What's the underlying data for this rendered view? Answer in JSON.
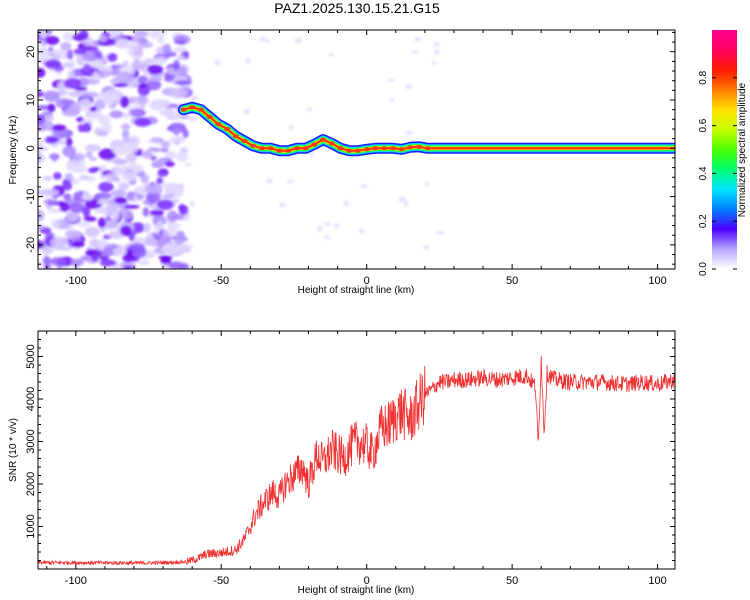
{
  "title": "PAZ1.2025.130.15.21.G15",
  "chart_data": [
    {
      "type": "heatmap",
      "xlabel": "Height of straight line (km)",
      "ylabel": "Frequency (Hz)",
      "xlim": [
        -113,
        106
      ],
      "ylim": [
        -25,
        24.5
      ],
      "xticks": [
        -100,
        -50,
        0,
        50,
        100
      ],
      "xtick_labels": [
        "-100",
        "-50",
        "0",
        "50",
        "100"
      ],
      "yticks": [
        -20,
        -10,
        0,
        10,
        20
      ],
      "ytick_labels": [
        "-20",
        "-10",
        "0",
        "10",
        "20"
      ],
      "noise_region_x": [
        -113,
        -62
      ],
      "ridge": {
        "x": [
          -63,
          -60,
          -57,
          -54,
          -51,
          -48,
          -45,
          -42,
          -39,
          -36,
          -33,
          -30,
          -27,
          -24,
          -21,
          -18,
          -15,
          -12,
          -9,
          -6,
          -3,
          0,
          3,
          6,
          9,
          12,
          15,
          18,
          21,
          30,
          50,
          60,
          80,
          106
        ],
        "freq": [
          8,
          8.5,
          8,
          6.5,
          5,
          4,
          2.5,
          1.5,
          0.5,
          0,
          0,
          -0.5,
          -0.5,
          0,
          0,
          0.8,
          1.8,
          1,
          0,
          -0.5,
          -0.5,
          -0.2,
          0,
          0,
          0,
          -0.2,
          0.2,
          0.3,
          0,
          0,
          0,
          0,
          0,
          0
        ]
      },
      "colorbar": {
        "label": "Normalized spectral amplitude",
        "range": [
          0,
          1
        ],
        "ticks": [
          0.0,
          0.2,
          0.4,
          0.6,
          0.8
        ],
        "tick_labels": [
          "0.0",
          "0.2",
          "0.4",
          "0.6",
          "0.8"
        ],
        "colors": [
          "#ffffff",
          "#b8a6ff",
          "#4b00ff",
          "#0080ff",
          "#00e5ff",
          "#00ff70",
          "#4cff00",
          "#c8ff00",
          "#ffe000",
          "#ff7a00",
          "#ff1a00",
          "#ff0060",
          "#ff0090"
        ]
      }
    },
    {
      "type": "line",
      "xlabel": "Height of straight line (km)",
      "ylabel": "SNR (10 * v/v)",
      "xlim": [
        -113,
        106
      ],
      "ylim": [
        0,
        5600
      ],
      "xticks": [
        -100,
        -50,
        0,
        50,
        100
      ],
      "xtick_labels": [
        "-100",
        "-50",
        "0",
        "50",
        "100"
      ],
      "yticks": [
        1000,
        2000,
        3000,
        4000,
        5000
      ],
      "ytick_labels": [
        "1000",
        "2000",
        "3000",
        "4000",
        "5000"
      ],
      "color": "#f03030",
      "series": [
        {
          "x": [
            -113,
            -100,
            -80,
            -70,
            -62,
            -58,
            -55,
            -50,
            -45,
            -42,
            -40,
            -38,
            -35,
            -32,
            -30,
            -28,
            -25,
            -22,
            -20,
            -17,
            -15,
            -12,
            -10,
            -8,
            -5,
            -3,
            0,
            2,
            5,
            8,
            10,
            12,
            15,
            18,
            20,
            22,
            25,
            28,
            30,
            35,
            40,
            45,
            50,
            55,
            58,
            59,
            60,
            61,
            62,
            65,
            70,
            80,
            90,
            95,
            100,
            106
          ],
          "y": [
            150,
            150,
            140,
            150,
            170,
            250,
            350,
            380,
            450,
            700,
            1000,
            1300,
            1600,
            1800,
            1700,
            2000,
            2200,
            2400,
            2000,
            2700,
            2500,
            2800,
            2700,
            2600,
            2900,
            3000,
            2900,
            2700,
            3300,
            3400,
            3600,
            3700,
            3500,
            3900,
            4100,
            4200,
            4400,
            4400,
            4450,
            4450,
            4500,
            4450,
            4500,
            4550,
            4300,
            2900,
            5000,
            3200,
            4600,
            4450,
            4400,
            4400,
            4350,
            4400,
            4350,
            4450
          ]
        }
      ]
    }
  ]
}
